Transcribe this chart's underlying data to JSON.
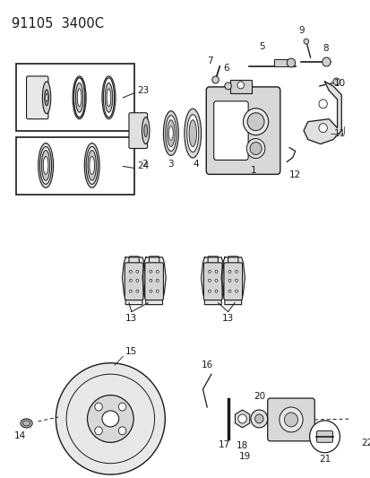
{
  "title": "91105  3400C",
  "bg_color": "#ffffff",
  "line_color": "#1a1a1a",
  "title_fontsize": 10,
  "label_fontsize": 7.5,
  "figsize": [
    4.14,
    5.33
  ],
  "dpi": 100
}
